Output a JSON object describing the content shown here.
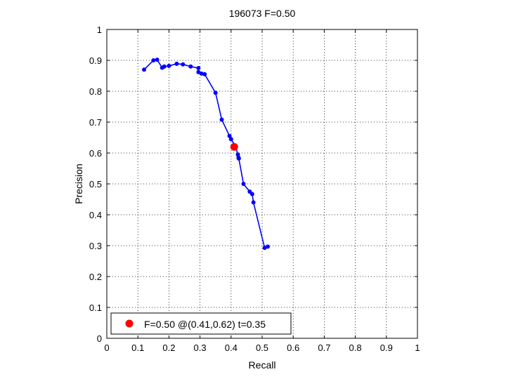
{
  "chart_data": {
    "type": "line",
    "title": "196073 F=0.50",
    "xlabel": "Recall",
    "ylabel": "Precision",
    "xlim": [
      0,
      1
    ],
    "ylim": [
      0,
      1
    ],
    "xticks": [
      "0",
      "0.1",
      "0.2",
      "0.3",
      "0.4",
      "0.5",
      "0.6",
      "0.7",
      "0.8",
      "0.9",
      "1"
    ],
    "yticks": [
      "0",
      "0.1",
      "0.2",
      "0.3",
      "0.4",
      "0.5",
      "0.6",
      "0.7",
      "0.8",
      "0.9",
      "1"
    ],
    "grid": true,
    "legend_position": "bottom-left",
    "series": [
      {
        "color": "#0000ff",
        "marker": "dot",
        "points": [
          [
            0.12,
            0.87
          ],
          [
            0.15,
            0.9
          ],
          [
            0.162,
            0.902
          ],
          [
            0.178,
            0.876
          ],
          [
            0.185,
            0.88
          ],
          [
            0.2,
            0.882
          ],
          [
            0.225,
            0.889
          ],
          [
            0.245,
            0.887
          ],
          [
            0.27,
            0.88
          ],
          [
            0.295,
            0.875
          ],
          [
            0.295,
            0.862
          ],
          [
            0.305,
            0.857
          ],
          [
            0.315,
            0.855
          ],
          [
            0.35,
            0.795
          ],
          [
            0.37,
            0.708
          ],
          [
            0.395,
            0.655
          ],
          [
            0.4,
            0.645
          ],
          [
            0.415,
            0.62
          ],
          [
            0.422,
            0.595
          ],
          [
            0.424,
            0.585
          ],
          [
            0.425,
            0.582
          ],
          [
            0.44,
            0.5
          ],
          [
            0.46,
            0.475
          ],
          [
            0.468,
            0.467
          ],
          [
            0.472,
            0.44
          ],
          [
            0.508,
            0.293
          ],
          [
            0.518,
            0.297
          ]
        ]
      }
    ],
    "highlight": {
      "color": "#ff0000",
      "recall": 0.41,
      "precision": 0.62,
      "label": "F=0.50 @(0.41,0.62) t=0.35"
    }
  }
}
